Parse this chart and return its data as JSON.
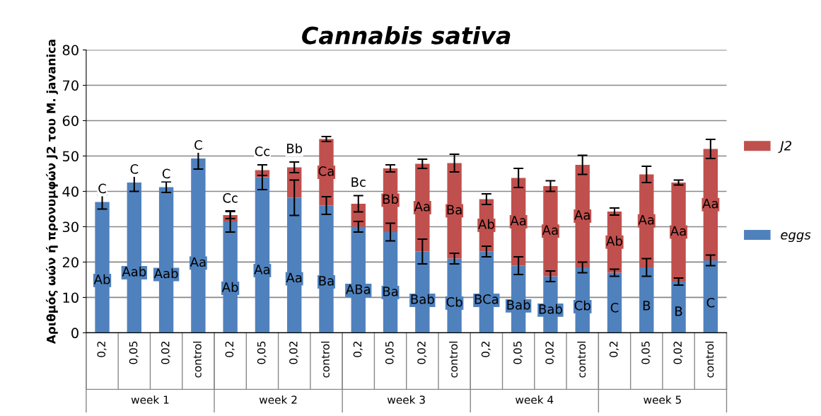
{
  "chart_data": {
    "type": "bar",
    "stacked": true,
    "title": "Cannabis sativa",
    "ylabel": "Αριθμός ωών ή προνυμφών J2 του M. javanica",
    "categories": [
      "0,2",
      "0,05",
      "0,02",
      "control",
      "0,2",
      "0,05",
      "0,02",
      "control",
      "0,2",
      "0,05",
      "0,02",
      "control",
      "0,2",
      "0,05",
      "0,02",
      "control",
      "0,2",
      "0,05",
      "0,02",
      "control"
    ],
    "annotations": [
      "week 1",
      "week 2",
      "week 3",
      "week 4",
      "week 5"
    ],
    "series": [
      {
        "name": "eggs",
        "color": "#4f81bd",
        "values": [
          37,
          42.5,
          41.2,
          49.3,
          31.5,
          44,
          38.2,
          36,
          30,
          28.5,
          23,
          21,
          23,
          19,
          16,
          18.5,
          17,
          18.5,
          14.5,
          20.5
        ],
        "errors": [
          2,
          2.5,
          1.5,
          3,
          3,
          3.5,
          5,
          2.5,
          1.5,
          2.5,
          3.5,
          1.5,
          1.5,
          2.5,
          1.5,
          1.5,
          1,
          2.5,
          1,
          1.5
        ],
        "value_labels": [
          "Ab",
          "Aab",
          "Aab",
          "Aa",
          "Ab",
          "Aa",
          "Aa",
          "Ba",
          "ABa",
          "Ba",
          "Bab",
          "Cb",
          "BCa",
          "Bab",
          "Bab",
          "Cb",
          "C",
          "B",
          "B",
          "C"
        ]
      },
      {
        "name": "J2",
        "color": "#c0504d",
        "values": [
          0,
          0,
          0,
          0,
          1.8,
          2,
          8.6,
          18.8,
          6.5,
          18,
          24.8,
          27,
          14.8,
          24.8,
          25.5,
          29,
          17.3,
          26.3,
          28,
          31.5
        ],
        "errors": [
          null,
          null,
          null,
          null,
          1,
          1.5,
          1.5,
          0.7,
          2.3,
          1,
          1.3,
          2.5,
          1.5,
          2.7,
          1.5,
          2.7,
          1,
          2.3,
          0.7,
          2.7
        ],
        "value_labels": [
          "C",
          "C",
          "C",
          "C",
          "Cc",
          "Cc",
          "Bb",
          "Ca",
          "Bc",
          "Bb",
          "Aa",
          "Ba",
          "Ab",
          "Aa",
          "Aa",
          "Aa",
          "Ab",
          "Aa",
          "Aa",
          "Aa"
        ]
      }
    ],
    "ylim": [
      0,
      80
    ],
    "yticks": [
      0,
      10,
      20,
      30,
      40,
      50,
      60,
      70,
      80
    ],
    "grid": "y",
    "legend": "right"
  }
}
